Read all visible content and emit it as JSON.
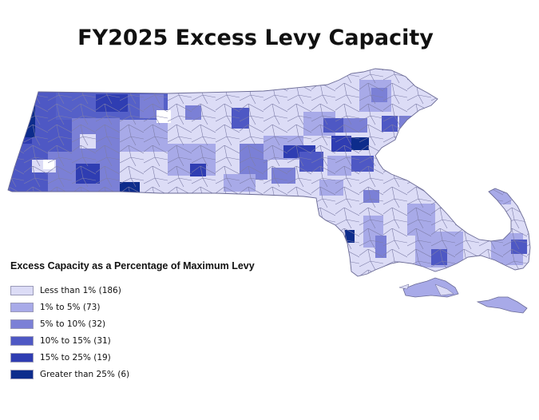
{
  "title": "FY2025 Excess Levy Capacity",
  "legend": {
    "title": "Excess Capacity as a Percentage of Maximum Levy",
    "items": [
      {
        "label": "Less than 1% (186)",
        "color": "#dcdcf6"
      },
      {
        "label": "1% to 5% (73)",
        "color": "#a8aae8"
      },
      {
        "label": "5% to 10% (32)",
        "color": "#7b80d6"
      },
      {
        "label": "10% to 15% (31)",
        "color": "#4e58c4"
      },
      {
        "label": "15% to 25% (19)",
        "color": "#2f3db2"
      },
      {
        "label": "Greater than 25% (6)",
        "color": "#0d2c8c"
      }
    ]
  }
}
